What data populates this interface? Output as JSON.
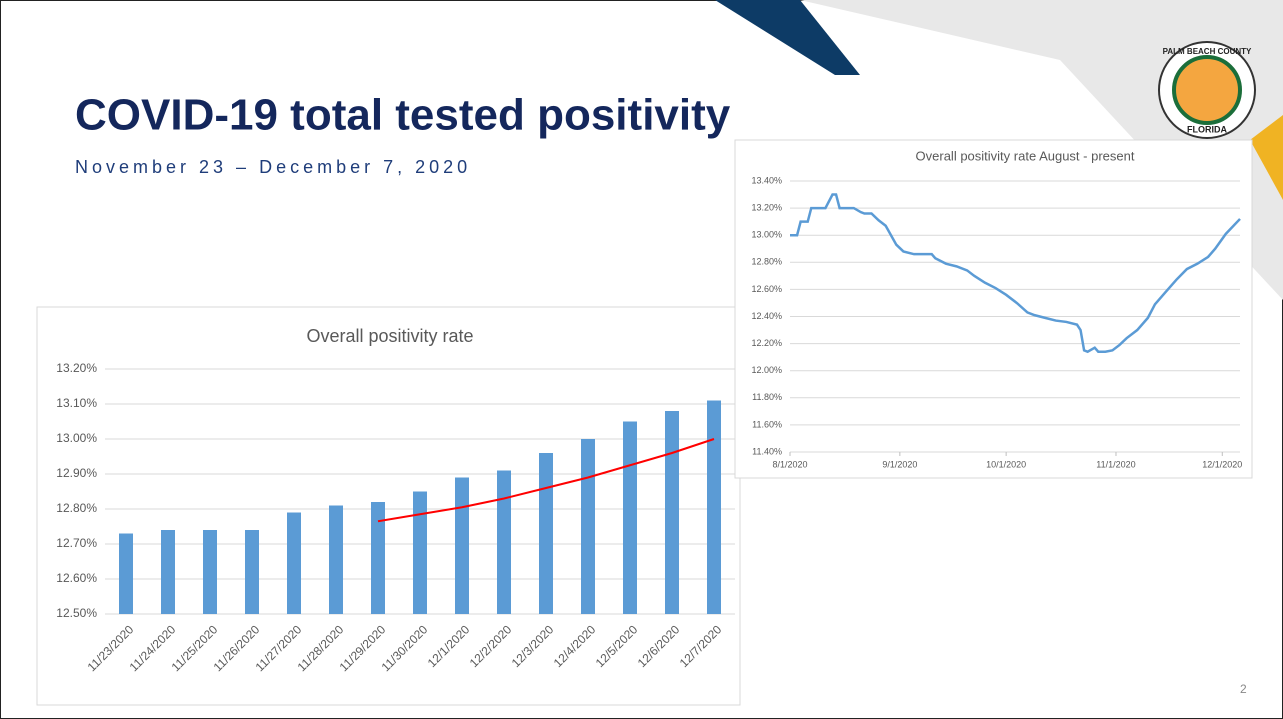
{
  "slide": {
    "title": "COVID-19 total tested positivity",
    "subtitle": "November 23 – December 7, 2020",
    "page_number": "2"
  },
  "logo": {
    "top": "PALM BEACH COUNTY",
    "bottom": "FLORIDA"
  },
  "chart_data": [
    {
      "type": "bar",
      "title": "Overall positivity rate",
      "categories": [
        "11/23/2020",
        "11/24/2020",
        "11/25/2020",
        "11/26/2020",
        "11/27/2020",
        "11/28/2020",
        "11/29/2020",
        "11/30/2020",
        "12/1/2020",
        "12/2/2020",
        "12/3/2020",
        "12/4/2020",
        "12/5/2020",
        "12/6/2020",
        "12/7/2020"
      ],
      "values": [
        12.73,
        12.74,
        12.74,
        12.74,
        12.79,
        12.81,
        12.82,
        12.85,
        12.89,
        12.91,
        12.96,
        13.0,
        13.05,
        13.08,
        13.11
      ],
      "color": "#5b9bd5",
      "trendline": {
        "color": "#ff0000",
        "values": [
          null,
          null,
          null,
          null,
          null,
          null,
          12.765,
          12.785,
          12.805,
          12.83,
          12.86,
          12.89,
          12.925,
          12.96,
          13.0
        ]
      },
      "ylim": [
        12.5,
        13.2
      ],
      "yticks": [
        {
          "value": 12.5,
          "label": "12.50%"
        },
        {
          "value": 12.6,
          "label": "12.60%"
        },
        {
          "value": 12.7,
          "label": "12.70%"
        },
        {
          "value": 12.8,
          "label": "12.80%"
        },
        {
          "value": 12.9,
          "label": "12.90%"
        },
        {
          "value": 13.0,
          "label": "13.00%"
        },
        {
          "value": 13.1,
          "label": "13.10%"
        },
        {
          "value": 13.2,
          "label": "13.20%"
        }
      ],
      "grid": true
    },
    {
      "type": "line",
      "title": "Overall positivity rate August - present",
      "x": [
        "8/1/2020",
        "8/3/2020",
        "8/4/2020",
        "8/6/2020",
        "8/7/2020",
        "8/11/2020",
        "8/13/2020",
        "8/14/2020",
        "8/15/2020",
        "8/19/2020",
        "8/21/2020",
        "8/22/2020",
        "8/24/2020",
        "8/26/2020",
        "8/28/2020",
        "8/31/2020",
        "9/2/2020",
        "9/5/2020",
        "9/7/2020",
        "9/10/2020",
        "9/11/2020",
        "9/14/2020",
        "9/17/2020",
        "9/20/2020",
        "9/22/2020",
        "9/25/2020",
        "9/28/2020",
        "10/1/2020",
        "10/4/2020",
        "10/7/2020",
        "10/9/2020",
        "10/12/2020",
        "10/15/2020",
        "10/18/2020",
        "10/21/2020",
        "10/22/2020",
        "10/23/2020",
        "10/24/2020",
        "10/26/2020",
        "10/27/2020",
        "10/29/2020",
        "10/31/2020",
        "11/2/2020",
        "11/4/2020",
        "11/7/2020",
        "11/10/2020",
        "11/12/2020",
        "11/15/2020",
        "11/18/2020",
        "11/21/2020",
        "11/24/2020",
        "11/27/2020",
        "11/29/2020",
        "12/2/2020",
        "12/6/2020"
      ],
      "values": [
        13.0,
        13.0,
        13.1,
        13.1,
        13.2,
        13.2,
        13.3,
        13.3,
        13.2,
        13.2,
        13.17,
        13.16,
        13.16,
        13.11,
        13.07,
        12.93,
        12.88,
        12.86,
        12.86,
        12.86,
        12.83,
        12.79,
        12.77,
        12.74,
        12.7,
        12.65,
        12.61,
        12.56,
        12.5,
        12.43,
        12.41,
        12.39,
        12.37,
        12.36,
        12.34,
        12.3,
        12.15,
        12.14,
        12.17,
        12.14,
        12.14,
        12.15,
        12.19,
        12.24,
        12.3,
        12.39,
        12.49,
        12.58,
        12.67,
        12.75,
        12.79,
        12.84,
        12.9,
        13.01,
        13.12
      ],
      "color": "#5b9bd5",
      "xlim": [
        "8/1/2020",
        "12/6/2020"
      ],
      "xticks": [
        "8/1/2020",
        "9/1/2020",
        "10/1/2020",
        "11/1/2020",
        "12/1/2020"
      ],
      "ylim": [
        11.4,
        13.4
      ],
      "yticks": [
        {
          "value": 11.4,
          "label": "11.40%"
        },
        {
          "value": 11.6,
          "label": "11.60%"
        },
        {
          "value": 11.8,
          "label": "11.80%"
        },
        {
          "value": 12.0,
          "label": "12.00%"
        },
        {
          "value": 12.2,
          "label": "12.20%"
        },
        {
          "value": 12.4,
          "label": "12.40%"
        },
        {
          "value": 12.6,
          "label": "12.60%"
        },
        {
          "value": 12.8,
          "label": "12.80%"
        },
        {
          "value": 13.0,
          "label": "13.00%"
        },
        {
          "value": 13.2,
          "label": "13.20%"
        },
        {
          "value": 13.4,
          "label": "13.40%"
        }
      ],
      "grid": true
    }
  ]
}
